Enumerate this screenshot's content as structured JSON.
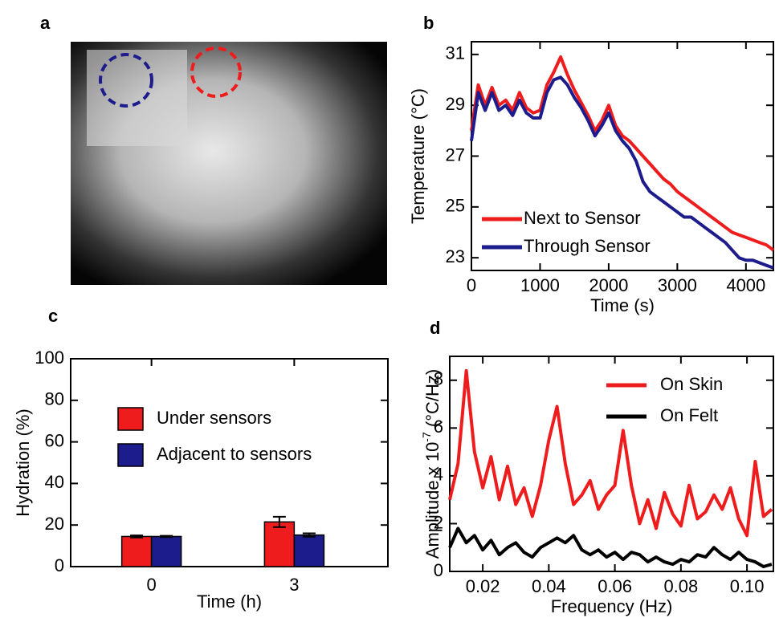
{
  "chart_data": [
    {
      "type": "image",
      "panel": "a"
    },
    {
      "type": "line",
      "panel": "b",
      "xlabel": "Time (s)",
      "ylabel": "Temperature (°C)",
      "x": [
        0,
        100,
        200,
        300,
        400,
        500,
        600,
        700,
        800,
        900,
        1000,
        1100,
        1200,
        1300,
        1400,
        1500,
        1600,
        1700,
        1800,
        1900,
        2000,
        2100,
        2200,
        2300,
        2400,
        2500,
        2600,
        2700,
        2800,
        2900,
        3000,
        3100,
        3200,
        3300,
        3400,
        3500,
        3600,
        3700,
        3800,
        3900,
        4000,
        4100,
        4200,
        4300,
        4400
      ],
      "series": [
        {
          "name": "Next to Sensor",
          "color": "#ee1c1c",
          "values": [
            28.0,
            29.8,
            29.0,
            29.7,
            29.0,
            29.2,
            28.8,
            29.5,
            28.9,
            28.7,
            28.8,
            29.8,
            30.3,
            30.9,
            30.2,
            29.6,
            29.1,
            28.6,
            28.0,
            28.4,
            29.0,
            28.2,
            27.8,
            27.6,
            27.3,
            27.0,
            26.7,
            26.4,
            26.1,
            25.9,
            25.6,
            25.4,
            25.2,
            25.0,
            24.8,
            24.6,
            24.4,
            24.2,
            24.0,
            23.9,
            23.8,
            23.7,
            23.6,
            23.5,
            23.3
          ]
        },
        {
          "name": "Through Sensor",
          "color": "#1c1c8c",
          "values": [
            27.6,
            29.5,
            28.8,
            29.5,
            28.8,
            29.0,
            28.6,
            29.2,
            28.7,
            28.5,
            28.5,
            29.5,
            30.0,
            30.1,
            29.8,
            29.3,
            28.9,
            28.4,
            27.8,
            28.2,
            28.7,
            28.0,
            27.6,
            27.3,
            26.8,
            26.0,
            25.6,
            25.4,
            25.2,
            25.0,
            24.8,
            24.6,
            24.6,
            24.4,
            24.2,
            24.0,
            23.8,
            23.6,
            23.3,
            23.0,
            22.9,
            22.9,
            22.8,
            22.7,
            22.6
          ]
        }
      ],
      "xlim": [
        0,
        4400
      ],
      "xticks": [
        0,
        1000,
        2000,
        3000,
        4000
      ],
      "ylim": [
        22.5,
        31.5
      ],
      "yticks": [
        23,
        25,
        27,
        29,
        31
      ]
    },
    {
      "type": "bar",
      "panel": "c",
      "xlabel": "Time (h)",
      "ylabel": "Hydration (%)",
      "categories": [
        "0",
        "3"
      ],
      "series": [
        {
          "name": "Under sensors",
          "color": "#ee1c1c",
          "values": [
            14.5,
            21.5
          ],
          "errors": [
            0.5,
            2.5
          ]
        },
        {
          "name": "Adjacent to sensors",
          "color": "#1c1c8c",
          "values": [
            14.5,
            15.2
          ],
          "errors": [
            0.3,
            0.8
          ]
        }
      ],
      "ylim": [
        0,
        100
      ],
      "yticks": [
        0,
        20,
        40,
        60,
        80,
        100
      ]
    },
    {
      "type": "line",
      "panel": "d",
      "xlabel": "Frequency (Hz)",
      "ylabel": "Amplitude x 10",
      "ylabel_exponent": "-7",
      "ylabel_unit": " (°C/Hz)",
      "x": [
        0.01,
        0.0125,
        0.015,
        0.0175,
        0.02,
        0.0225,
        0.025,
        0.0275,
        0.03,
        0.0325,
        0.035,
        0.0375,
        0.04,
        0.0425,
        0.045,
        0.0475,
        0.05,
        0.0525,
        0.055,
        0.0575,
        0.06,
        0.0625,
        0.065,
        0.0675,
        0.07,
        0.0725,
        0.075,
        0.0775,
        0.08,
        0.0825,
        0.085,
        0.0875,
        0.09,
        0.0925,
        0.095,
        0.0975,
        0.1,
        0.1025,
        0.105,
        0.1075
      ],
      "series": [
        {
          "name": "On Skin",
          "color": "#ee1c1c",
          "values": [
            3.0,
            4.5,
            8.4,
            5.0,
            3.5,
            4.8,
            3.0,
            4.4,
            2.8,
            3.5,
            2.3,
            3.6,
            5.5,
            6.9,
            4.5,
            2.8,
            3.2,
            3.8,
            2.6,
            3.2,
            3.6,
            5.9,
            3.6,
            2.0,
            3.0,
            1.8,
            3.3,
            2.4,
            1.9,
            3.6,
            2.2,
            2.5,
            3.2,
            2.6,
            3.5,
            2.2,
            1.5,
            4.6,
            2.3,
            2.6
          ]
        },
        {
          "name": "On Felt",
          "color": "#000000",
          "values": [
            1.0,
            1.8,
            1.2,
            1.5,
            0.9,
            1.3,
            0.7,
            1.0,
            1.2,
            0.8,
            0.6,
            1.0,
            1.2,
            1.4,
            1.2,
            1.5,
            0.9,
            0.7,
            0.9,
            0.6,
            0.8,
            0.5,
            0.8,
            0.7,
            0.4,
            0.6,
            0.4,
            0.3,
            0.5,
            0.4,
            0.7,
            0.6,
            1.0,
            0.7,
            0.5,
            0.8,
            0.5,
            0.4,
            0.2,
            0.3
          ]
        }
      ],
      "xlim": [
        0.01,
        0.108
      ],
      "xticks": [
        0.02,
        0.04,
        0.06,
        0.08,
        {
          "value": 0.1,
          "label": "0.10"
        }
      ],
      "ylim": [
        0,
        9
      ],
      "yticks": [
        0,
        2,
        4,
        6,
        8
      ]
    }
  ]
}
